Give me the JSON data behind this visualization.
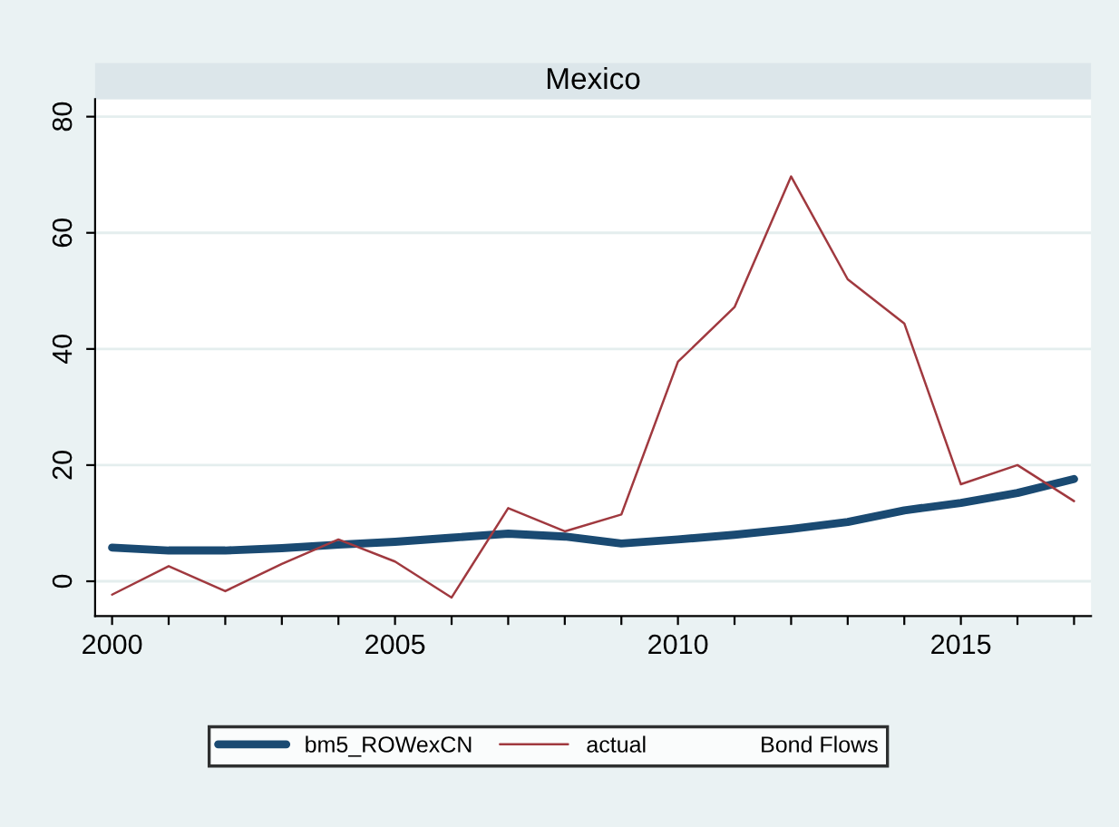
{
  "chart_data": {
    "type": "line",
    "title": "Mexico",
    "legend_title": "Bond Flows",
    "x": [
      2000,
      2001,
      2002,
      2003,
      2004,
      2005,
      2006,
      2007,
      2008,
      2009,
      2010,
      2011,
      2012,
      2013,
      2014,
      2015,
      2016,
      2017
    ],
    "series": [
      {
        "name": "bm5_ROWexCN",
        "color": "#1a4a72",
        "values": [
          5.8,
          5.3,
          5.3,
          5.7,
          6.3,
          6.8,
          7.5,
          8.2,
          7.7,
          6.5,
          7.2,
          8.0,
          9.0,
          10.2,
          12.2,
          13.5,
          15.2,
          17.6
        ]
      },
      {
        "name": "actual",
        "color": "#a0393f",
        "values": [
          -2.3,
          2.6,
          -1.7,
          3.0,
          7.2,
          3.4,
          -2.8,
          12.6,
          8.6,
          11.5,
          37.8,
          47.2,
          69.7,
          52.0,
          44.4,
          16.7,
          20.0,
          13.8
        ]
      }
    ],
    "xlim": [
      1999.7,
      2017.3
    ],
    "ylim": [
      -6,
      83
    ],
    "xticks": [
      2000,
      {
        "value": 2001,
        "label": null
      },
      {
        "value": 2002,
        "label": null
      },
      {
        "value": 2003,
        "label": null
      },
      {
        "value": 2004,
        "label": null
      },
      2005,
      {
        "value": 2006,
        "label": null
      },
      {
        "value": 2007,
        "label": null
      },
      {
        "value": 2008,
        "label": null
      },
      {
        "value": 2009,
        "label": null
      },
      2010,
      {
        "value": 2011,
        "label": null
      },
      {
        "value": 2012,
        "label": null
      },
      {
        "value": 2013,
        "label": null
      },
      {
        "value": 2014,
        "label": null
      },
      2015,
      {
        "value": 2016,
        "label": null
      },
      {
        "value": 2017,
        "label": null
      }
    ],
    "yticks": [
      0,
      20,
      40,
      60,
      80
    ],
    "grid": "y",
    "legend": "bottom"
  }
}
